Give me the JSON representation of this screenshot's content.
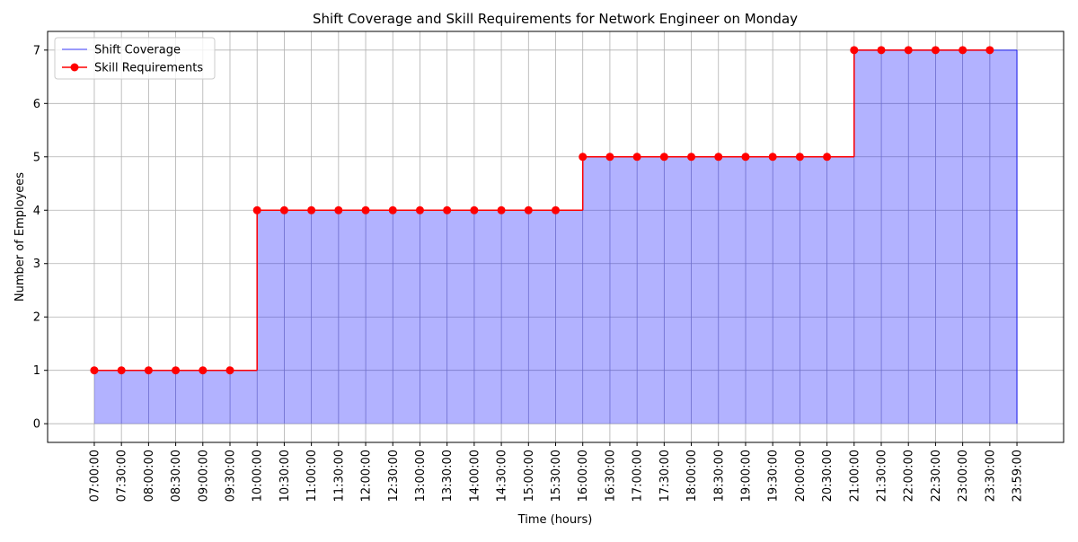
{
  "chart_data": {
    "type": "step",
    "title": "Shift Coverage and Skill Requirements for Network Engineer on Monday",
    "x_label": "Time (hours)",
    "y_label": "Number of Employees",
    "categories": [
      "07:00:00",
      "07:30:00",
      "08:00:00",
      "08:30:00",
      "09:00:00",
      "09:30:00",
      "10:00:00",
      "10:30:00",
      "11:00:00",
      "11:30:00",
      "12:00:00",
      "12:30:00",
      "13:00:00",
      "13:30:00",
      "14:00:00",
      "14:30:00",
      "15:00:00",
      "15:30:00",
      "16:00:00",
      "16:30:00",
      "17:00:00",
      "17:30:00",
      "18:00:00",
      "18:30:00",
      "19:00:00",
      "19:30:00",
      "20:00:00",
      "20:30:00",
      "21:00:00",
      "21:30:00",
      "22:00:00",
      "22:30:00",
      "23:00:00",
      "23:30:00",
      "23:59:00"
    ],
    "series": [
      {
        "name": "Shift Coverage",
        "color": "#0000ff",
        "fill": true,
        "values": [
          1,
          1,
          1,
          1,
          1,
          1,
          4,
          4,
          4,
          4,
          4,
          4,
          4,
          4,
          4,
          4,
          4,
          4,
          5,
          5,
          5,
          5,
          5,
          5,
          5,
          5,
          5,
          5,
          7,
          7,
          7,
          7,
          7,
          7,
          0
        ]
      },
      {
        "name": "Skill Requirements",
        "color": "#ff0000",
        "markers": true,
        "values": [
          1,
          1,
          1,
          1,
          1,
          1,
          4,
          4,
          4,
          4,
          4,
          4,
          4,
          4,
          4,
          4,
          4,
          4,
          5,
          5,
          5,
          5,
          5,
          5,
          5,
          5,
          5,
          5,
          7,
          7,
          7,
          7,
          7,
          7,
          null
        ]
      }
    ],
    "ylim": [
      -0.35,
      7.35
    ],
    "yticks": [
      0,
      1,
      2,
      3,
      4,
      5,
      6,
      7
    ],
    "grid": true,
    "legend": "upper left"
  }
}
